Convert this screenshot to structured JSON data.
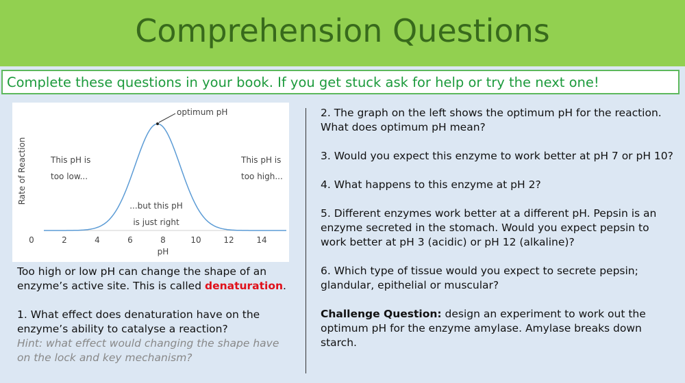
{
  "header": {
    "title": "Comprehension Questions"
  },
  "instruction": "Complete these questions in your book. If you get stuck ask for help or try the next one!",
  "graph": {
    "xlabel": "pH",
    "ylabel": "Rate of Reaction",
    "xlim": [
      0,
      15.5
    ],
    "xticks": [
      0,
      2,
      4,
      6,
      8,
      10,
      12,
      14
    ],
    "annotations": {
      "optimum": "optimum pH",
      "low1": "This pH is",
      "low2": "too low...",
      "high1": "This pH is",
      "high2": "too high...",
      "right1": "...but this pH",
      "right2": "is just right"
    }
  },
  "left": {
    "intro_start": "Too high or low pH can change the shape of an enzyme’s active site. This is called ",
    "intro_key": "denaturation",
    "intro_end": ".",
    "q1": "1. What effect does denaturation have on the enzyme’s ability to catalyse a reaction?",
    "hint": "Hint: what effect would changing the shape have on the lock and key mechanism?"
  },
  "right": {
    "questions": [
      "2. The graph on the left shows the optimum pH for the reaction. What does optimum pH mean?",
      "3. Would you expect this enzyme to work better at pH 7 or pH 10?",
      "4. What happens to this enzyme at pH 2?",
      "5. Different enzymes work better at a different pH. Pepsin is an enzyme secreted in the stomach. Would you expect pepsin to work better at pH 3 (acidic) or pH 12 (alkaline)?",
      "6. Which type of tissue would you expect to secrete pepsin; glandular, epithelial or muscular?"
    ],
    "challenge_label": "Challenge Question:",
    "challenge_text": " design an experiment to work out the optimum pH for the enzyme amylase. Amylase breaks down starch."
  }
}
